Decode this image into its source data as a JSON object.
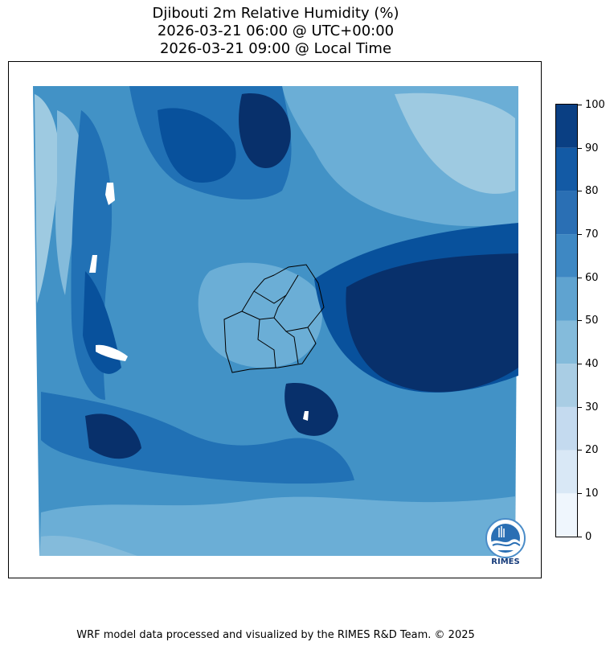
{
  "header": {
    "title_line1": "Djibouti 2m Relative Humidity (%)",
    "title_line2": "2026-03-21 06:00 @ UTC+00:00",
    "title_line3": "2026-03-21 09:00 @ Local Time"
  },
  "colorbar": {
    "ticks": [
      "0",
      "10",
      "20",
      "30",
      "40",
      "50",
      "60",
      "70",
      "80",
      "90",
      "100"
    ],
    "colors": [
      "#f7fbff",
      "#deebf7",
      "#c6dbef",
      "#9ecae1",
      "#6baed6",
      "#4292c6",
      "#2171b5",
      "#08519c",
      "#08306b",
      "#08306b"
    ],
    "band_colors": [
      "#eff6fd",
      "#d9e8f6",
      "#c4daef",
      "#a9cde4",
      "#84bbdb",
      "#5fa3d0",
      "#3e88c3",
      "#2a6fb4",
      "#135aa5",
      "#0a3f83"
    ]
  },
  "logo": {
    "text": "RIMES"
  },
  "footer": {
    "credit": "WRF model data processed and visualized by the RIMES R&D Team. © 2025"
  }
}
